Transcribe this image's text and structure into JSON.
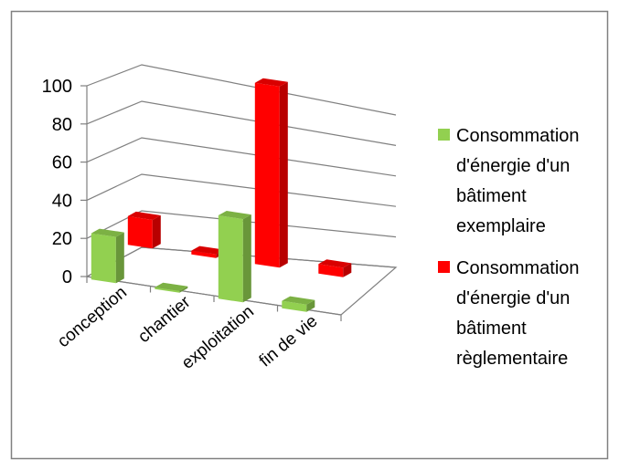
{
  "colors": {
    "series_1": "#92d050",
    "series_2": "#ff0000",
    "gridline": "#808080",
    "frame": "#808080"
  },
  "chart_data": {
    "type": "bar",
    "subtype": "3d-clustered-column",
    "title": "",
    "xlabel": "",
    "ylabel": "",
    "categories": [
      "conception",
      "chantier",
      "exploitation",
      "fin de vie"
    ],
    "series": [
      {
        "name": "Consommation d'énergie d'un bâtiment exemplaire",
        "values": [
          25,
          1,
          45,
          4
        ]
      },
      {
        "name": "Consommation d'énergie d'un bâtiment règlementaire",
        "values": [
          15,
          2,
          95,
          5
        ]
      }
    ],
    "ylim": [
      0,
      100
    ],
    "yticks": [
      0,
      20,
      40,
      60,
      80,
      100
    ],
    "grid": true,
    "legend_position": "right",
    "legend_lines": [
      [
        "Consommation",
        "d'énergie d'un",
        "bâtiment",
        "exemplaire"
      ],
      [
        "Consommation",
        "d'énergie d'un",
        "bâtiment",
        "règlementaire"
      ]
    ]
  }
}
